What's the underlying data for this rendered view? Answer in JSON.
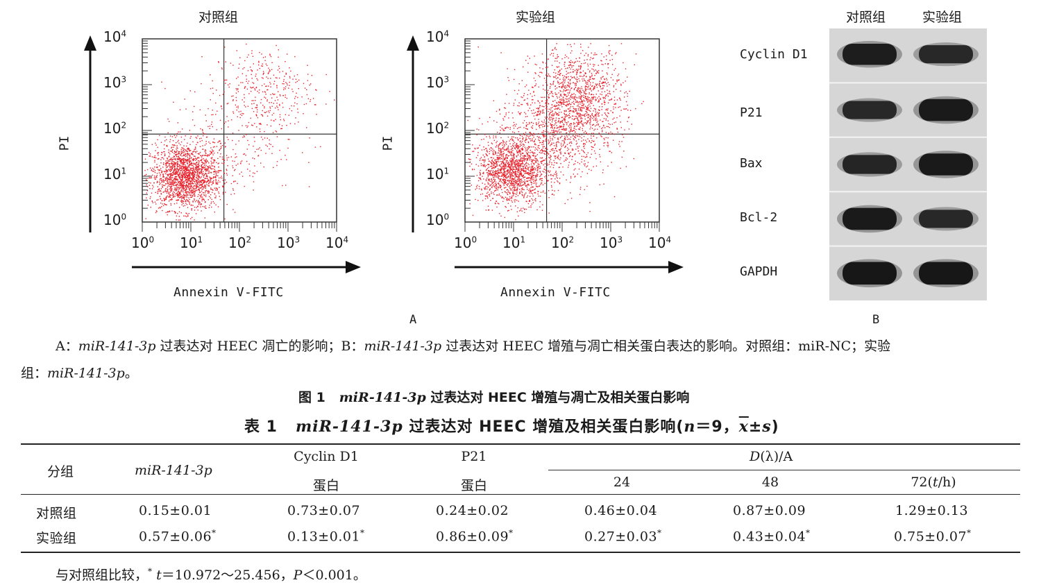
{
  "panel_a": {
    "plots": [
      {
        "title": "对照组",
        "xlabel": "Annexin V-FITC",
        "ylabel": "PI"
      },
      {
        "title": "实验组",
        "xlabel": "Annexin V-FITC",
        "ylabel": "PI"
      }
    ],
    "tick_labels": [
      "10",
      "10",
      "10",
      "10",
      "10"
    ],
    "tick_exponents": [
      "0",
      "1",
      "2",
      "3",
      "4"
    ],
    "letter": "A"
  },
  "panel_b": {
    "columns": [
      "对照组",
      "实验组"
    ],
    "bands": [
      {
        "label": "Cyclin D1",
        "control": 0.75,
        "experiment": 0.55
      },
      {
        "label": "P21",
        "control": 0.55,
        "experiment": 0.8
      },
      {
        "label": "Bax",
        "control": 0.6,
        "experiment": 0.8
      },
      {
        "label": "Bcl-2",
        "control": 0.8,
        "experiment": 0.55
      },
      {
        "label": "GAPDH",
        "control": 0.85,
        "experiment": 0.85
      }
    ],
    "letter": "B"
  },
  "caption": {
    "p1_a": "A：",
    "gene1": "miR-141-3p",
    "p1_b": " 过表达对 HEEC 凋亡的影响；B：",
    "gene2": "miR-141-3p",
    "p1_c": " 过表达对 HEEC 增殖与凋亡相关蛋白表达的影响。对照组：miR-NC；实验",
    "p2_a": "组：",
    "gene3": "miR-141-3p",
    "p2_b": "。"
  },
  "figure_title": {
    "prefix": "图 1",
    "gene": "miR-141-3p",
    "rest": " 过表达对 HEEC 增殖与凋亡及相关蛋白影响"
  },
  "table_title": {
    "prefix": "表 1",
    "gene": "miR-141-3p",
    "rest": " 过表达对 HEEC 增殖及相关蛋白影响(",
    "n": "n",
    "n_val": "＝9，",
    "xbar": "x",
    "pm": "±",
    "s": "s",
    "close": ")"
  },
  "table": {
    "header": {
      "group": "分组",
      "gene": "miR-141-3p",
      "cyclin_top": "Cyclin D1",
      "cyclin_bottom": "蛋白",
      "p21_top": "P21",
      "p21_bottom": "蛋白",
      "d_lambda_d": "D",
      "d_lambda_rest": "(λ)/A",
      "t24": "24",
      "t48": "48",
      "t72_a": "72(",
      "t72_t": "t",
      "t72_b": "/h)"
    },
    "rows": [
      {
        "group": "对照组",
        "gene": "0.15±0.01",
        "cyclin": "0.73±0.07",
        "p21": "0.24±0.02",
        "t24": "0.46±0.04",
        "t48": "0.87±0.09",
        "t72": "1.29±0.13",
        "mark": ""
      },
      {
        "group": "实验组",
        "gene": "0.57±0.06",
        "cyclin": "0.13±0.01",
        "p21": "0.86±0.09",
        "t24": "0.27±0.03",
        "t48": "0.43±0.04",
        "t72": "0.75±0.07",
        "mark": "*"
      }
    ]
  },
  "footnote": {
    "a": "与对照组比较，",
    "star": "*",
    "t": "t",
    "b": "＝10.972～25.456，",
    "p": "P",
    "c": "＜0.001。"
  }
}
